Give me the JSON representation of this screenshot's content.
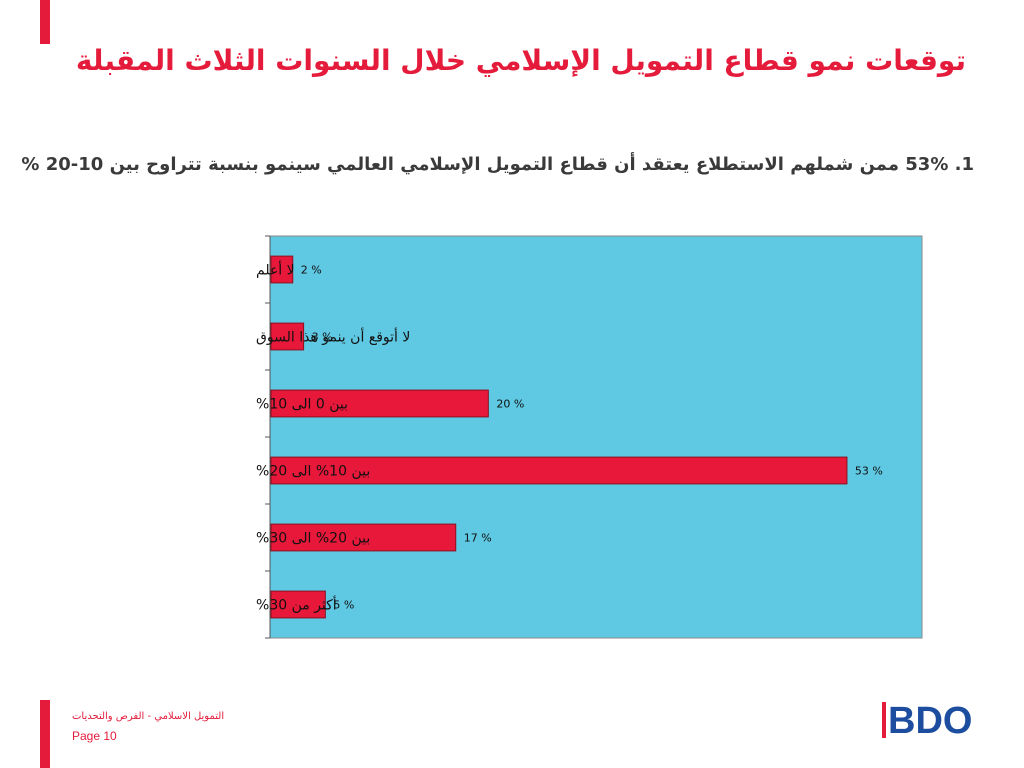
{
  "slide": {
    "title": "توقعات نمو قطاع التمويل الإسلامي خلال السنوات الثلاث المقبلة",
    "subtitle": "1. 53% ممن شملهم الاستطلاع يعتقد أن قطاع التمويل الإسلامي العالمي سينمو بنسبة تتراوح بين 10-20 %"
  },
  "chart_data": {
    "type": "bar",
    "orientation": "horizontal",
    "categories": [
      "لا أعلم",
      "لا أتوقع أن ينمو هذا السوق",
      "بين 0 الى 10%",
      "بين 10% الى 20%",
      "بين 20% الى 30%",
      "أكثر من 30%"
    ],
    "values": [
      2,
      3,
      20,
      53,
      17,
      5
    ],
    "value_labels": [
      "2 %",
      "3 %",
      "20 %",
      "53 %",
      "17 %",
      "5 %"
    ],
    "xlim": [
      0,
      60
    ],
    "grid": false,
    "legend": "none",
    "colors": {
      "bar": "#e8183a",
      "bar_border": "#8a1020",
      "plot_bg": "#5fc8e2",
      "plot_border": "#8a8a8a"
    }
  },
  "footer": {
    "text": "التمويل الاسلامي - الفرص والتحديات",
    "page": "Page 10"
  },
  "logo": {
    "text": "BDO",
    "color": "#1c4d9e",
    "accent": "#e41b3a"
  },
  "colors": {
    "accent": "#e41b3a"
  }
}
